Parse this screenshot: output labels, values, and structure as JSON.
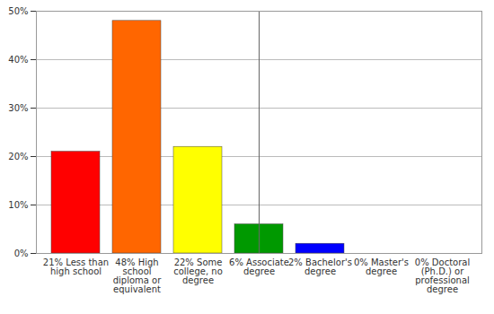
{
  "chart_data": {
    "type": "bar",
    "categories": [
      "21% Less than high school",
      "48% High school diploma or equivalent",
      "22% Some college, no degree",
      "6% Associate degree",
      "2% Bachelor's degree",
      "0% Master's degree",
      "0% Doctoral (Ph.D.) or professional degree"
    ],
    "values": [
      21,
      48,
      22,
      6,
      2,
      0,
      0
    ],
    "colors": [
      "#ff0000",
      "#ff6600",
      "#ffff00",
      "#009900",
      "#0000ff",
      "#9900ff",
      "#ff00ff"
    ],
    "ylim": [
      0,
      50
    ],
    "yticks": [
      {
        "value": 0,
        "label": "0%"
      },
      {
        "value": 10,
        "label": "10%"
      },
      {
        "value": 20,
        "label": "20%"
      },
      {
        "value": 30,
        "label": "30%"
      },
      {
        "value": 40,
        "label": "40%"
      },
      {
        "value": 50,
        "label": "50%"
      }
    ],
    "grid": true
  }
}
